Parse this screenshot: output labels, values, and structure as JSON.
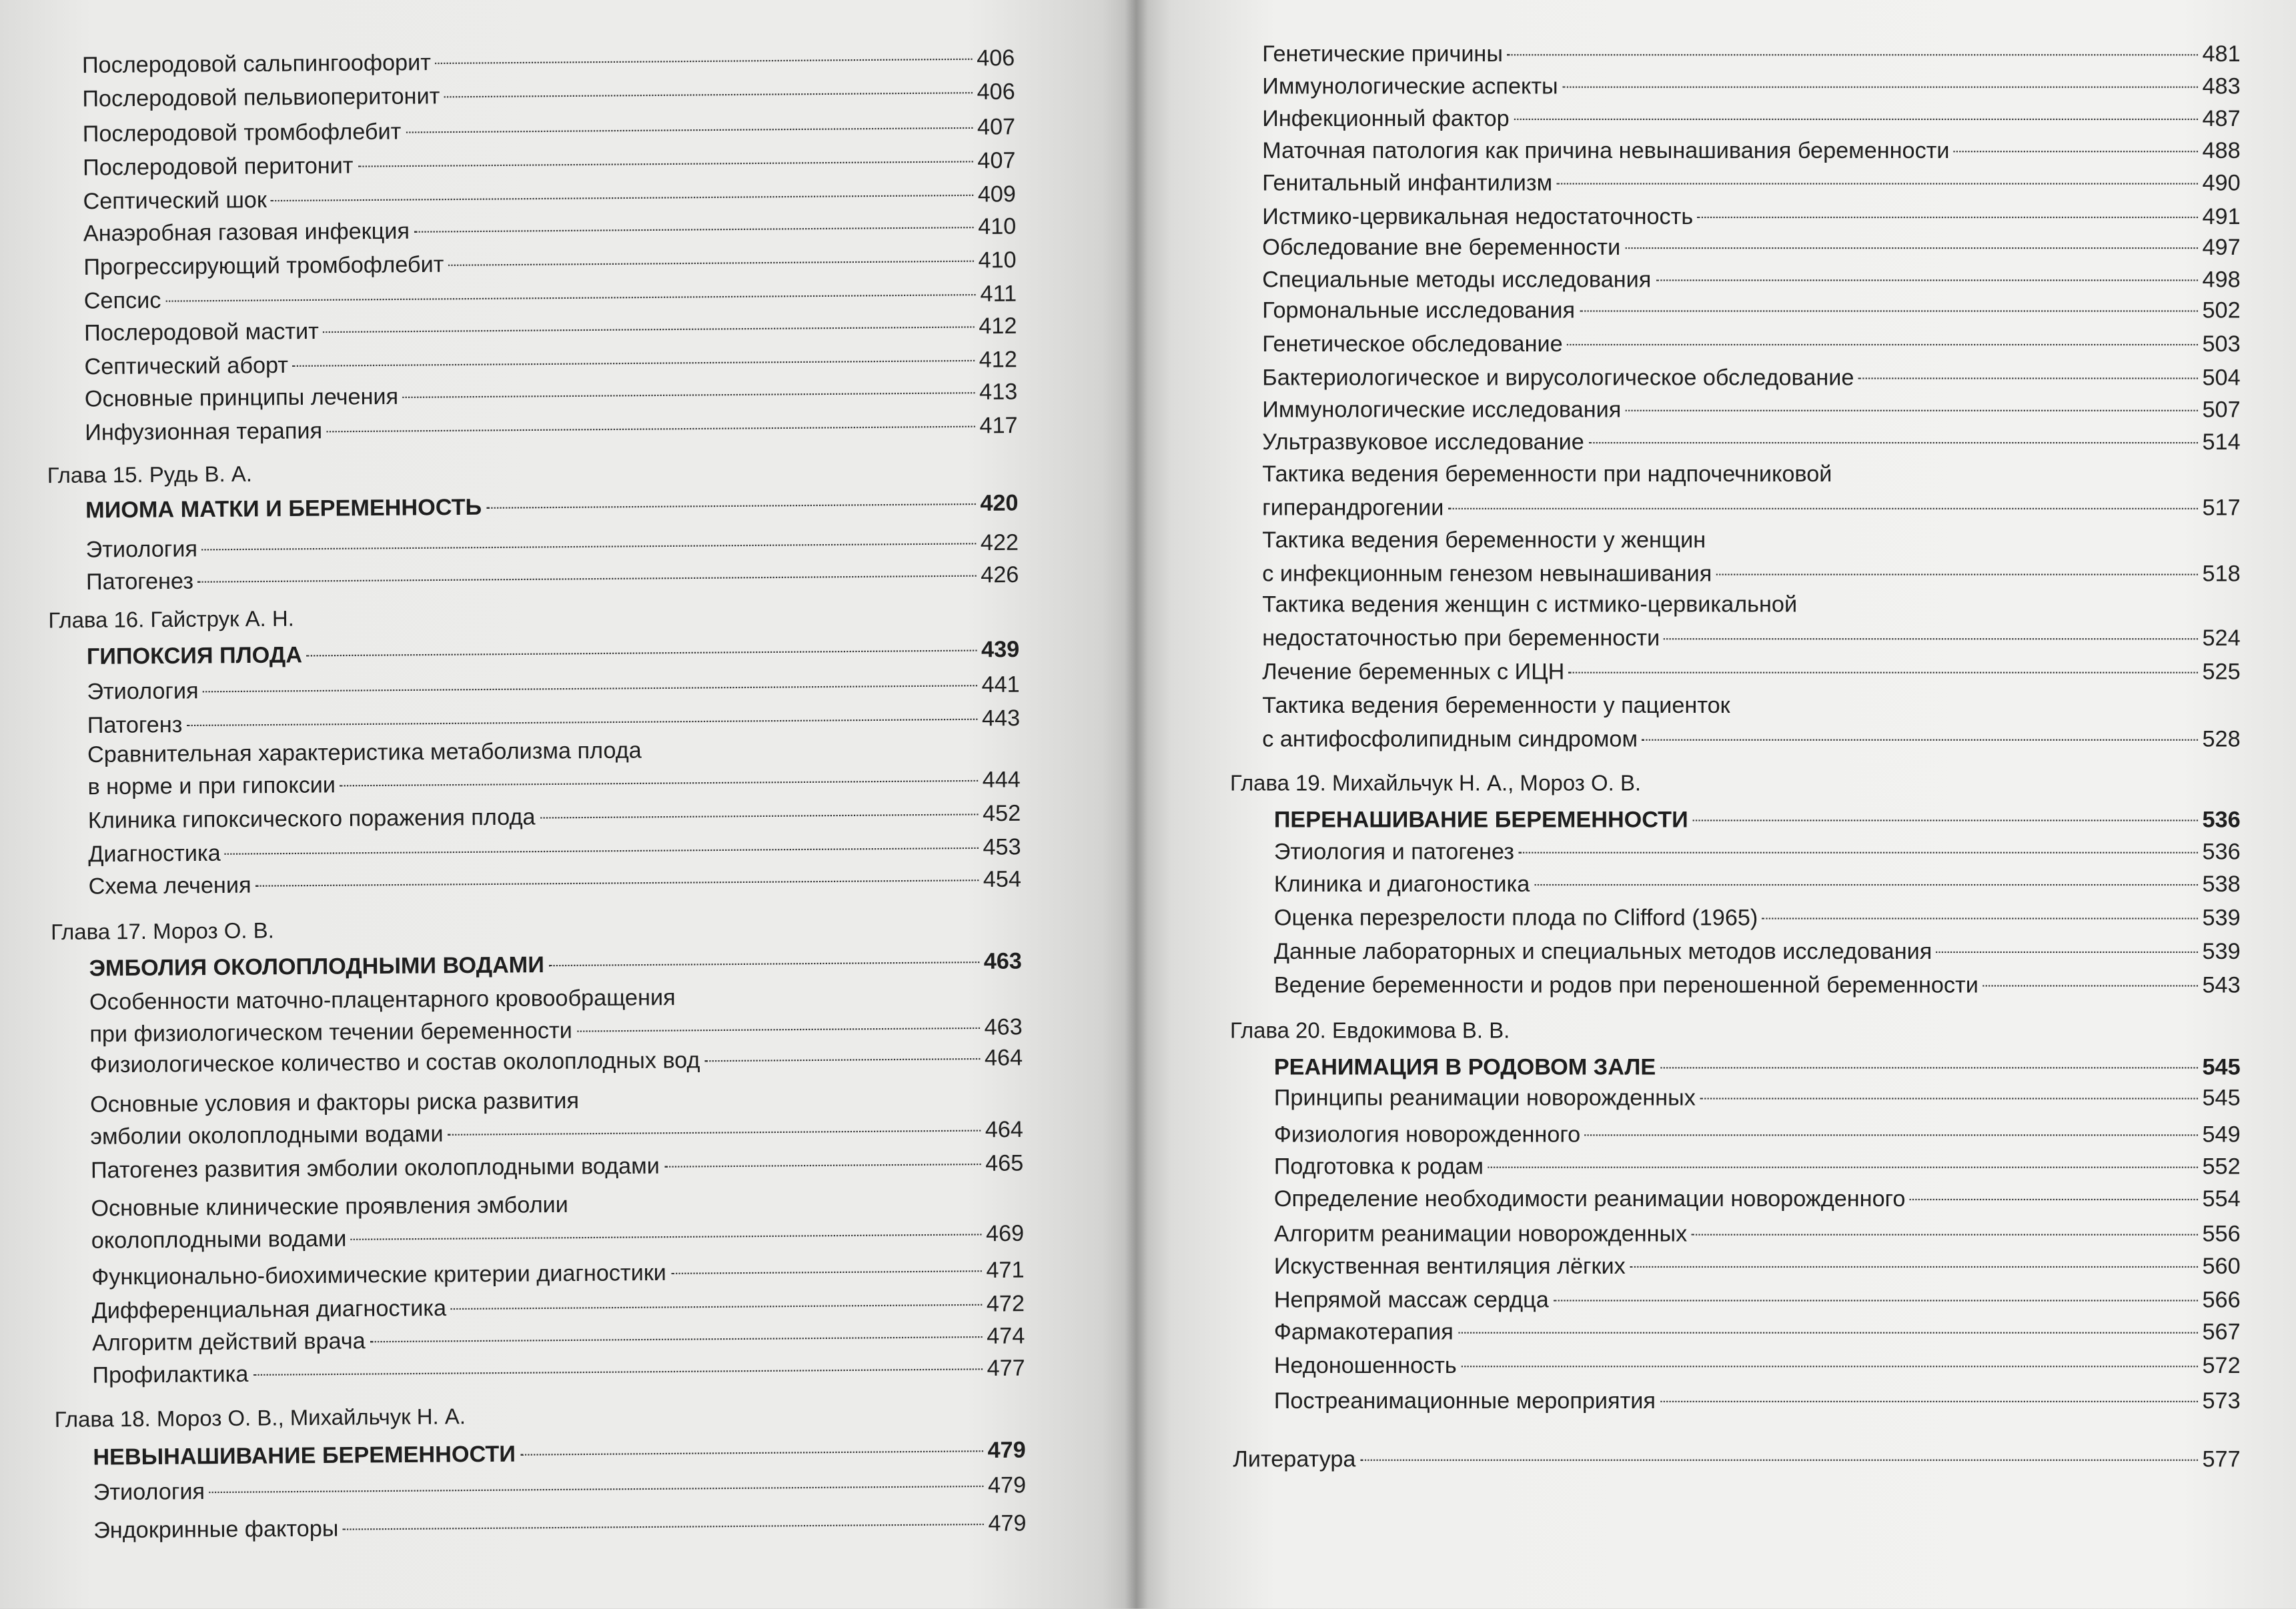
{
  "left_page": {
    "items": [
      {
        "kind": "entry",
        "lines": [
          "Послеродовой сальпингоофорит"
        ],
        "page": "406"
      },
      {
        "kind": "entry",
        "lines": [
          "Послеродовой пельвиоперитонит"
        ],
        "page": "406"
      },
      {
        "kind": "entry",
        "lines": [
          "Послеродовой тромбофлебит"
        ],
        "page": "407"
      },
      {
        "kind": "entry",
        "lines": [
          "Послеродовой перитонит"
        ],
        "page": "407"
      },
      {
        "kind": "entry",
        "lines": [
          "Септический шок"
        ],
        "page": "409"
      },
      {
        "kind": "entry",
        "lines": [
          "Анаэробная газовая инфекция"
        ],
        "page": "410"
      },
      {
        "kind": "entry",
        "lines": [
          "Прогрессирующий тромбофлебит"
        ],
        "page": "410"
      },
      {
        "kind": "entry",
        "lines": [
          "Сепсис"
        ],
        "page": "411"
      },
      {
        "kind": "entry",
        "lines": [
          "Послеродовой мастит"
        ],
        "page": "412"
      },
      {
        "kind": "entry",
        "lines": [
          "Септический аборт"
        ],
        "page": "412"
      },
      {
        "kind": "entry",
        "lines": [
          "Основные принципы лечения"
        ],
        "page": "413"
      },
      {
        "kind": "entry",
        "lines": [
          "Инфузионная терапия"
        ],
        "page": "417"
      },
      {
        "kind": "chapter",
        "lines": [
          "Глава 15. Рудь В. А."
        ]
      },
      {
        "kind": "bold",
        "lines": [
          "МИОМА МАТКИ И БЕРЕМЕННОСТЬ"
        ],
        "page": "420"
      },
      {
        "kind": "entry",
        "lines": [
          "Этиология"
        ],
        "page": "422"
      },
      {
        "kind": "entry",
        "lines": [
          "Патогенез"
        ],
        "page": "426"
      },
      {
        "kind": "chapter",
        "lines": [
          "Глава 16. Гайструк А. Н."
        ]
      },
      {
        "kind": "bold",
        "lines": [
          "ГИПОКСИЯ ПЛОДА"
        ],
        "page": "439"
      },
      {
        "kind": "entry",
        "lines": [
          "Этиология"
        ],
        "page": "441"
      },
      {
        "kind": "entry",
        "lines": [
          "Патогенз"
        ],
        "page": "443"
      },
      {
        "kind": "entry",
        "lines": [
          "Сравнительная  характеристика метаболизма плода",
          "в норме и при гипоксии"
        ],
        "page": "444"
      },
      {
        "kind": "entry",
        "lines": [
          "Клиника гипоксического поражения плода"
        ],
        "page": "452"
      },
      {
        "kind": "entry",
        "lines": [
          "Диагностика"
        ],
        "page": "453"
      },
      {
        "kind": "entry",
        "lines": [
          "Схема лечения"
        ],
        "page": "454"
      },
      {
        "kind": "chapter",
        "lines": [
          "Глава 17.  Мороз О. В."
        ]
      },
      {
        "kind": "bold",
        "lines": [
          "ЭМБОЛИЯ ОКОЛОПЛОДНЫМИ ВОДАМИ"
        ],
        "page": "463"
      },
      {
        "kind": "entry",
        "lines": [
          "Особенности маточно-плацентарного кровообращения",
          "при физиологическом  течении беременности"
        ],
        "page": "463"
      },
      {
        "kind": "entry",
        "lines": [
          "Физиологическое количество и состав околоплодных вод"
        ],
        "page": "464"
      },
      {
        "kind": "entry",
        "lines": [
          "Основные условия и факторы риска развития",
          "эмболии околоплодными водами"
        ],
        "page": "464"
      },
      {
        "kind": "entry",
        "lines": [
          "Патогенез развития эмболии околоплодными водами"
        ],
        "page": "465"
      },
      {
        "kind": "entry",
        "lines": [
          "Основные клинические проявления эмболии",
          "околоплодными водами"
        ],
        "page": "469"
      },
      {
        "kind": "entry",
        "lines": [
          "Функционально-биохимические критерии диагностики"
        ],
        "page": "471"
      },
      {
        "kind": "entry",
        "lines": [
          "Дифференциальная диагностика"
        ],
        "page": "472"
      },
      {
        "kind": "entry",
        "lines": [
          "Алгоритм действий врача"
        ],
        "page": "474"
      },
      {
        "kind": "entry",
        "lines": [
          "Профилактика"
        ],
        "page": "477"
      },
      {
        "kind": "chapter",
        "lines": [
          "Глава 18. Мороз О. В., Михайльчук Н. А."
        ]
      },
      {
        "kind": "bold",
        "lines": [
          "НЕВЫНАШИВАНИЕ БЕРЕМЕННОСТИ"
        ],
        "page": "479"
      },
      {
        "kind": "entry",
        "lines": [
          "Этиология"
        ],
        "page": "479"
      },
      {
        "kind": "entry",
        "lines": [
          "Эндокринные факторы"
        ],
        "page": "479"
      }
    ]
  },
  "right_page": {
    "items": [
      {
        "kind": "entry",
        "lines": [
          "Генетические причины"
        ],
        "page": "481"
      },
      {
        "kind": "entry",
        "lines": [
          "Иммунологические аспекты"
        ],
        "page": "483"
      },
      {
        "kind": "entry",
        "lines": [
          "Инфекционный фактор"
        ],
        "page": "487"
      },
      {
        "kind": "entry",
        "lines": [
          "Маточная патология как причина невынашивания беременности"
        ],
        "page": "488"
      },
      {
        "kind": "entry",
        "lines": [
          "Генитальный инфантилизм"
        ],
        "page": "490"
      },
      {
        "kind": "entry",
        "lines": [
          "Истмико-цервикальная недостаточность"
        ],
        "page": "491"
      },
      {
        "kind": "entry",
        "lines": [
          "Обследование вне беременности"
        ],
        "page": "497"
      },
      {
        "kind": "entry",
        "lines": [
          "Специальные методы исследования"
        ],
        "page": "498"
      },
      {
        "kind": "entry",
        "lines": [
          "Гормональные исследования"
        ],
        "page": "502"
      },
      {
        "kind": "entry",
        "lines": [
          "Генетическое обследование"
        ],
        "page": "503"
      },
      {
        "kind": "entry",
        "lines": [
          "Бактериологическое и вирусологическое обследование"
        ],
        "page": "504"
      },
      {
        "kind": "entry",
        "lines": [
          "Иммунологические исследования"
        ],
        "page": "507"
      },
      {
        "kind": "entry",
        "lines": [
          "Ультразвуковое исследование"
        ],
        "page": "514"
      },
      {
        "kind": "entry",
        "lines": [
          "Тактика ведения беременности при надпочечниковой",
          "гиперандрогении"
        ],
        "page": "517"
      },
      {
        "kind": "entry",
        "lines": [
          "Тактика ведения беременности у женщин",
          "с инфекционным генезом невынашивания"
        ],
        "page": "518"
      },
      {
        "kind": "entry",
        "lines": [
          "Тактика ведения женщин с истмико-цервикальной",
          "недостаточностью при беременности"
        ],
        "page": "524"
      },
      {
        "kind": "entry",
        "lines": [
          "Лечение беременных с ИЦН"
        ],
        "page": "525"
      },
      {
        "kind": "entry",
        "lines": [
          "Тактика ведения беременности у пациенток",
          "с антифосфолипидным синдромом"
        ],
        "page": "528"
      },
      {
        "kind": "chapter",
        "lines": [
          "Глава 19.  Михайльчук Н. А., Мороз О. В."
        ]
      },
      {
        "kind": "bold",
        "lines": [
          "ПЕРЕНАШИВАНИЕ БЕРЕМЕННОСТИ"
        ],
        "page": "536"
      },
      {
        "kind": "entry",
        "lines": [
          "Этиология и патогенез"
        ],
        "page": "536"
      },
      {
        "kind": "entry",
        "lines": [
          "Клиника и диагоностика"
        ],
        "page": "538"
      },
      {
        "kind": "entry",
        "lines": [
          "Оценка перезрелости плода по Clifford (1965)"
        ],
        "page": "539"
      },
      {
        "kind": "entry",
        "lines": [
          "Данные лабораторных и специальных методов исследования"
        ],
        "page": "539"
      },
      {
        "kind": "entry",
        "lines": [
          "Ведение беременности и родов при переношенной беременности"
        ],
        "page": "543"
      },
      {
        "kind": "chapter",
        "lines": [
          "Глава 20.  Евдокимова В. В."
        ]
      },
      {
        "kind": "bold",
        "lines": [
          "РЕАНИМАЦИЯ В РОДОВОМ ЗАЛЕ"
        ],
        "page": "545"
      },
      {
        "kind": "entry",
        "lines": [
          "Принципы реанимации новорожденных"
        ],
        "page": "545"
      },
      {
        "kind": "entry",
        "lines": [
          "Физиология новорожденного"
        ],
        "page": "549"
      },
      {
        "kind": "entry",
        "lines": [
          "Подготовка к родам"
        ],
        "page": "552"
      },
      {
        "kind": "entry",
        "lines": [
          "Определение необходимости реанимации новорожденного"
        ],
        "page": "554"
      },
      {
        "kind": "entry",
        "lines": [
          "Алгоритм реанимации новорожденных"
        ],
        "page": "556"
      },
      {
        "kind": "entry",
        "lines": [
          "Искуственная вентиляция лёгких"
        ],
        "page": "560"
      },
      {
        "kind": "entry",
        "lines": [
          "Непрямой массаж сердца"
        ],
        "page": "566"
      },
      {
        "kind": "entry",
        "lines": [
          "Фармакотерапия"
        ],
        "page": "567"
      },
      {
        "kind": "entry",
        "lines": [
          "Недоношенность"
        ],
        "page": "572"
      },
      {
        "kind": "entry",
        "lines": [
          "Постреанимационные мероприятия"
        ],
        "page": "573"
      },
      {
        "kind": "chapter-entry",
        "lines": [
          "Литература"
        ],
        "page": "577"
      }
    ]
  }
}
